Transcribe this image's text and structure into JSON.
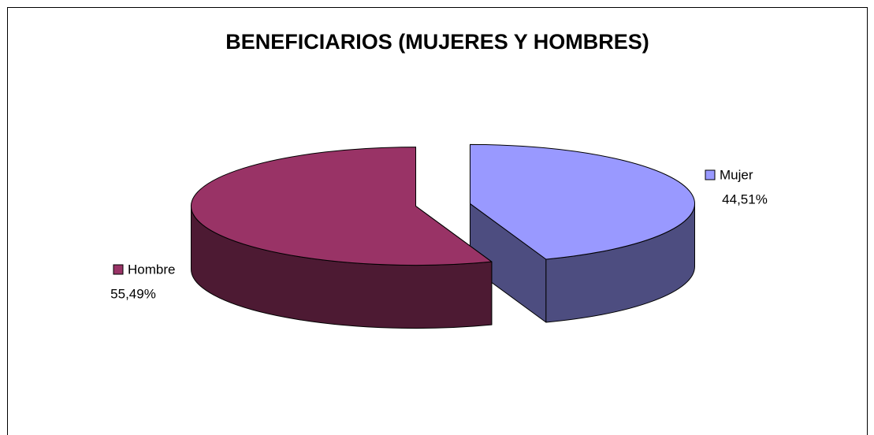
{
  "chart_data": {
    "type": "pie",
    "title": "BENEFICIARIOS (MUJERES Y HOMBRES)",
    "categories": [
      "Mujer",
      "Hombre"
    ],
    "values": [
      44.51,
      55.49
    ],
    "value_labels": [
      "44,51%",
      "55,49%"
    ],
    "colors": [
      "#9999ff",
      "#993366"
    ]
  }
}
